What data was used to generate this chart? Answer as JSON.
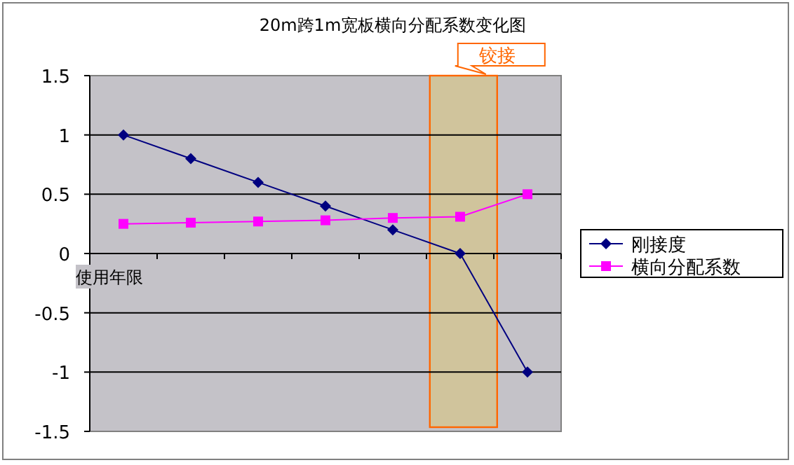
{
  "chart_data": {
    "type": "line",
    "title": "20m跨1m宽板横向分配系数变化图",
    "xlabel": "使用年限",
    "categories": [
      null,
      null,
      null,
      null,
      null,
      null,
      null
    ],
    "ylim": [
      -1.5,
      1.5
    ],
    "yticks": [
      {
        "value": 1.5,
        "label": "1.5"
      },
      1,
      {
        "value": 0.5,
        "label": "0.5"
      },
      0,
      {
        "value": -0.5,
        "label": "-0.5"
      },
      -1,
      {
        "value": -1.5,
        "label": "-1.5"
      }
    ],
    "tick_labels": "y",
    "grid": "y",
    "legend": "right",
    "line_style": "solid",
    "series": [
      {
        "name": "刚接度",
        "color": "#000080",
        "marker": "diamond",
        "values": [
          1,
          0.8,
          0.6,
          0.4,
          0.2,
          0,
          -1
        ]
      },
      {
        "name": "横向分配系数",
        "color": "#ff00ff",
        "marker": "square",
        "values": [
          0.25,
          0.26,
          0.27,
          0.28,
          0.3,
          0.31,
          0.5
        ]
      }
    ],
    "annotations": [
      "铰接"
    ]
  }
}
